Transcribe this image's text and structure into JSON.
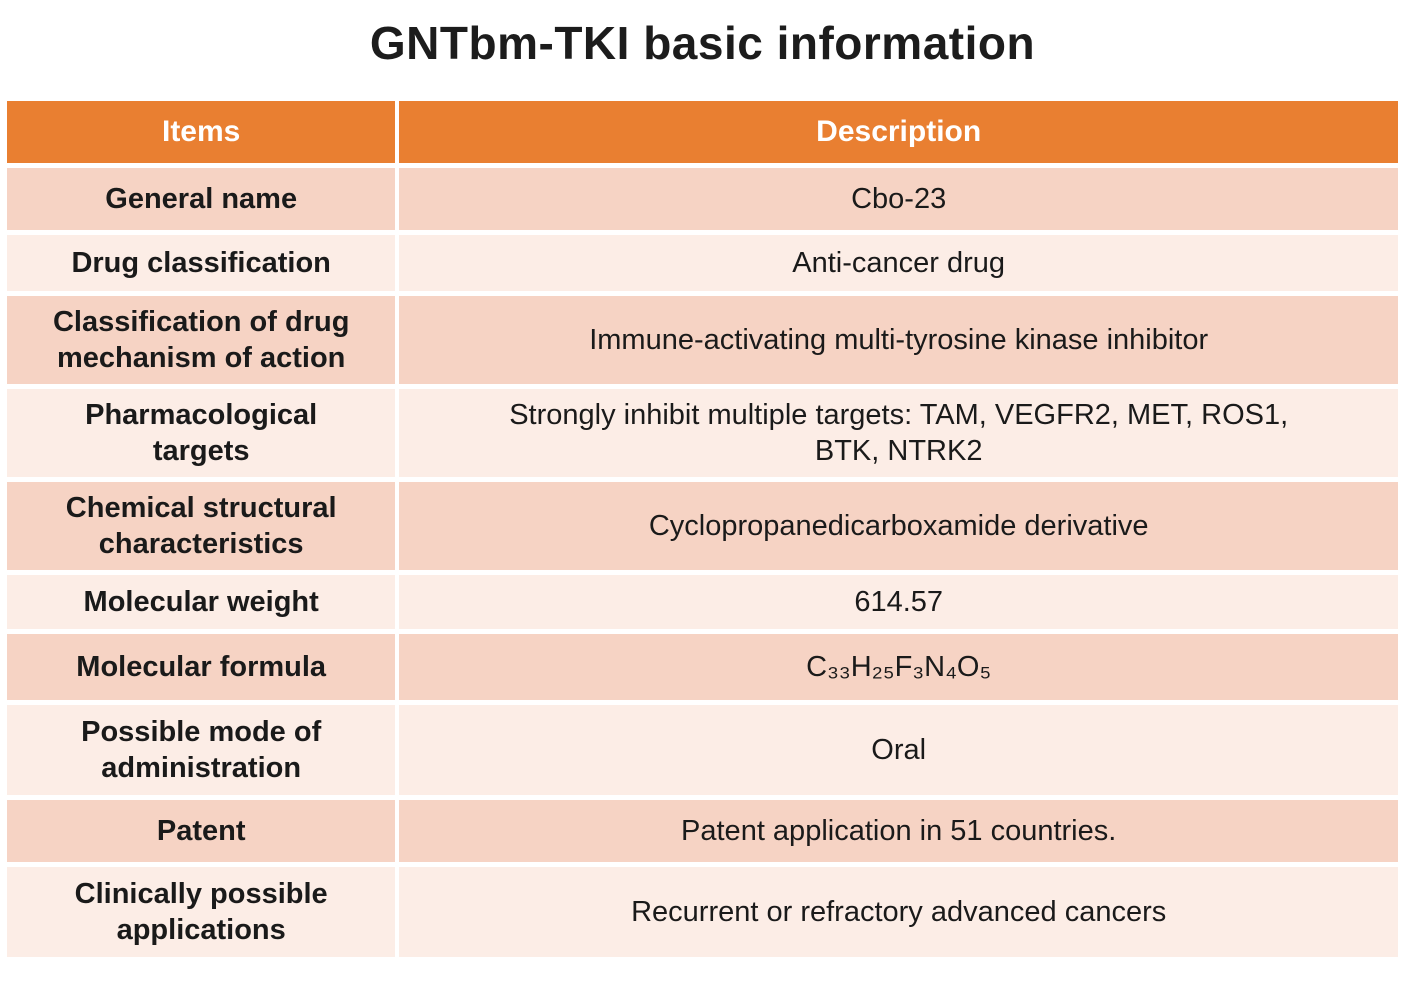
{
  "page": {
    "title": "GNTbm-TKI basic information"
  },
  "colors": {
    "header_bg": "#E97F31",
    "header_text": "#FFFFFF",
    "row_dark_bg": "#F6D3C4",
    "row_light_bg": "#FCEDE6",
    "body_text": "#1A1A1A",
    "gridline": "#FFFFFF"
  },
  "table": {
    "columns": [
      {
        "label": "Items"
      },
      {
        "label": "Description"
      }
    ],
    "rows": [
      {
        "item": "General name",
        "description": "Cbo-23"
      },
      {
        "item": "Drug classification",
        "description": "Anti-cancer drug"
      },
      {
        "item": "Classification of drug\nmechanism of action",
        "description": "Immune-activating multi-tyrosine kinase inhibitor"
      },
      {
        "item": "Pharmacological\ntargets",
        "description": "Strongly inhibit multiple targets: TAM, VEGFR2, MET, ROS1,\nBTK, NTRK2"
      },
      {
        "item": "Chemical structural\ncharacteristics",
        "description": "Cyclopropanedicarboxamide derivative"
      },
      {
        "item": "Molecular weight",
        "description": "614.57"
      },
      {
        "item": "Molecular formula",
        "description": "C₃₃H₂₅F₃N₄O₅"
      },
      {
        "item": "Possible mode of\nadministration",
        "description": "Oral"
      },
      {
        "item": "Patent",
        "description": "Patent application in 51 countries."
      },
      {
        "item": "Clinically possible\napplications",
        "description": "Recurrent or refractory advanced cancers"
      }
    ]
  }
}
